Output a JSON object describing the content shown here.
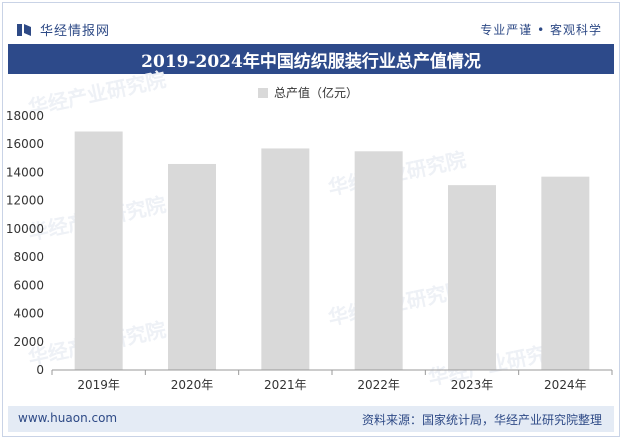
{
  "header": {
    "brand_name": "华经情报网",
    "slogan": "专业严谨 • 客观科学"
  },
  "title": "2019-2024年中国纺织服装行业总产值情况",
  "footer": {
    "website": "www.huaon.com",
    "source": "资料来源：国家统计局，华经产业研究院整理"
  },
  "watermark_text": "华经产业研究院",
  "colors": {
    "bar": "#d9d9d9",
    "title_bg": "#2d4a8a",
    "footer_bg": "#e4ebf5",
    "accent_text": "#2e4a86"
  },
  "chart_data": {
    "type": "bar",
    "categories": [
      "2019年",
      "2020年",
      "2021年",
      "2022年",
      "2023年",
      "2024年"
    ],
    "series": [
      {
        "name": "总产值（亿元）",
        "values": [
          16900,
          14600,
          15700,
          15500,
          13100,
          13700
        ]
      }
    ],
    "ylim": [
      0,
      18000
    ],
    "yticks": [
      0,
      2000,
      4000,
      6000,
      8000,
      10000,
      12000,
      14000,
      16000,
      18000
    ],
    "xlabel": "",
    "ylabel": "",
    "grid": false,
    "legend": "top-center"
  }
}
